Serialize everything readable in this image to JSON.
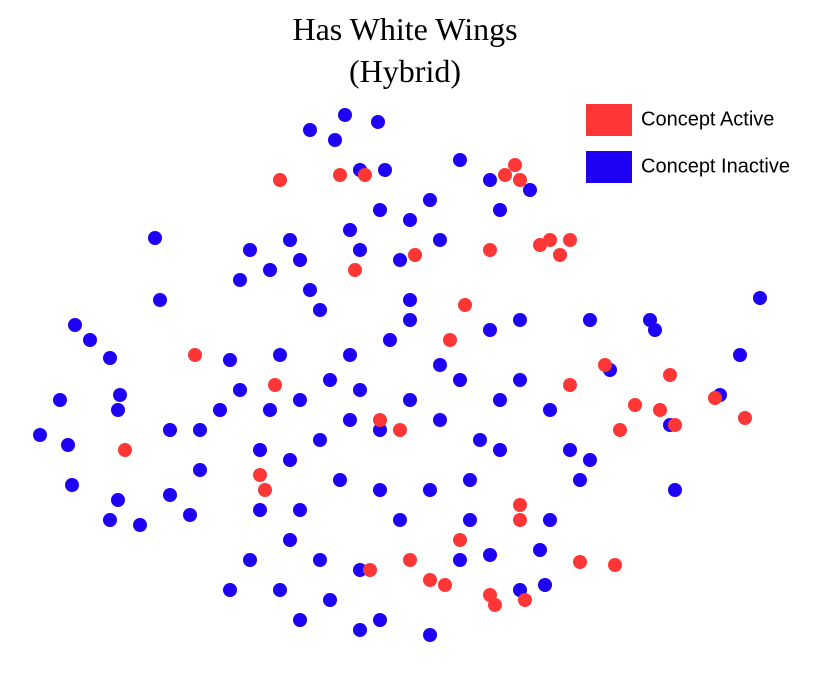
{
  "chart_data": {
    "type": "scatter",
    "title": "Has White Wings",
    "subtitle": "(Hybrid)",
    "xlim": [
      0,
      780
    ],
    "ylim": [
      0,
      560
    ],
    "legend": "upper right",
    "series": [
      {
        "name": "Concept Inactive",
        "color": "#1e00f5",
        "x": [
          320,
          353,
          310,
          285,
          335,
          360,
          435,
          465,
          505,
          475,
          130,
          135,
          50,
          65,
          85,
          35,
          15,
          43,
          95,
          93,
          47,
          93,
          85,
          115,
          145,
          165,
          225,
          245,
          265,
          275,
          215,
          285,
          295,
          325,
          355,
          385,
          405,
          335,
          375,
          415,
          385,
          365,
          325,
          305,
          335,
          275,
          245,
          215,
          195,
          175,
          205,
          255,
          235,
          265,
          295,
          325,
          355,
          385,
          415,
          435,
          455,
          475,
          495,
          475,
          445,
          405,
          375,
          355,
          315,
          275,
          265,
          225,
          205,
          255,
          295,
          335,
          355,
          335,
          405,
          445,
          435,
          525,
          545,
          555,
          565,
          525,
          515,
          465,
          495,
          520,
          565,
          495,
          465,
          625,
          585,
          630,
          715,
          695,
          645,
          650,
          735,
          235,
          145,
          415,
          385,
          275,
          305,
          175
        ],
        "values": [
          535,
          528,
          510,
          520,
          480,
          480,
          490,
          470,
          460,
          440,
          412,
          350,
          325,
          310,
          292,
          250,
          215,
          205,
          255,
          240,
          165,
          150,
          130,
          125,
          155,
          135,
          400,
          380,
          410,
          390,
          370,
          360,
          340,
          420,
          440,
          430,
          450,
          400,
          390,
          410,
          330,
          310,
          295,
          270,
          260,
          250,
          240,
          260,
          240,
          220,
          290,
          295,
          200,
          190,
          210,
          230,
          220,
          250,
          230,
          270,
          210,
          250,
          270,
          200,
          170,
          160,
          130,
          160,
          170,
          140,
          110,
          90,
          60,
          60,
          90,
          80,
          30,
          20,
          15,
          130,
          90,
          240,
          200,
          170,
          190,
          130,
          100,
          95,
          60,
          65,
          330,
          330,
          320,
          330,
          280,
          320,
          295,
          255,
          225,
          160,
          352,
          140,
          220,
          285,
          350,
          30,
          50,
          180
        ]
      },
      {
        "name": "Concept Active",
        "color": "#ff3636",
        "x": [
          490,
          480,
          495,
          525,
          545,
          515,
          535,
          255,
          315,
          340,
          440,
          425,
          170,
          100,
          235,
          240,
          355,
          375,
          465,
          390,
          545,
          580,
          610,
          635,
          645,
          595,
          650,
          720,
          690,
          495,
          495,
          435,
          385,
          345,
          405,
          465,
          470,
          500,
          555,
          590,
          420,
          330,
          250
        ],
        "values": [
          485,
          475,
          470,
          410,
          410,
          405,
          395,
          470,
          475,
          475,
          345,
          310,
          295,
          200,
          175,
          160,
          230,
          220,
          400,
          395,
          265,
          285,
          245,
          240,
          275,
          220,
          225,
          232,
          252,
          130,
          145,
          110,
          90,
          80,
          70,
          55,
          45,
          50,
          88,
          85,
          65,
          380,
          265
        ]
      }
    ]
  }
}
